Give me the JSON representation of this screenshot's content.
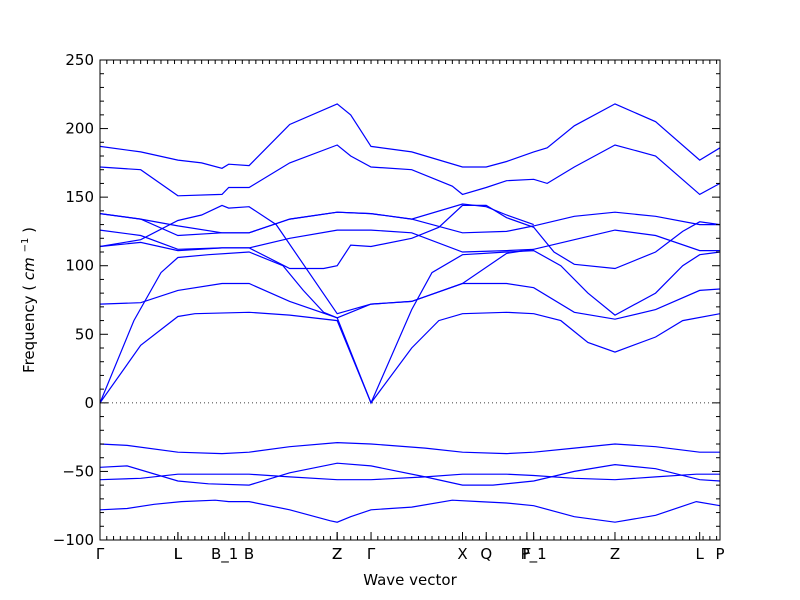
{
  "chart_data": {
    "type": "line",
    "title": "",
    "xlabel": "Wave vector",
    "ylabel": "Frequency",
    "ylabel_unit_base": "cm",
    "ylabel_unit_exp": "−1",
    "ylim": [
      -100,
      250
    ],
    "yticks": [
      "250",
      "200",
      "150",
      "100",
      "50",
      "0",
      "−50",
      "−100"
    ],
    "ytick_values": [
      250,
      200,
      150,
      100,
      50,
      0,
      -50,
      -100
    ],
    "xlim": [
      0,
      4.575
    ],
    "high_symmetry_points": [
      {
        "label": "Γ",
        "x": 0.0
      },
      {
        "label": "L",
        "x": 0.575
      },
      {
        "label": "L",
        "x": 0.575
      },
      {
        "label": "B_1",
        "x": 0.92
      },
      {
        "label": "B",
        "x": 1.1
      },
      {
        "label": "Z",
        "x": 1.75
      },
      {
        "label": "Z",
        "x": 1.75
      },
      {
        "label": "Γ",
        "x": 2.0
      },
      {
        "label": "X",
        "x": 2.675
      },
      {
        "label": "Q",
        "x": 2.85
      },
      {
        "label": "F",
        "x": 3.15
      },
      {
        "label": "P_1",
        "x": 3.2
      },
      {
        "label": "Z",
        "x": 3.8
      },
      {
        "label": "L",
        "x": 4.425
      },
      {
        "label": "P",
        "x": 4.575
      }
    ],
    "grid": false,
    "series": [
      {
        "values": [
          [
            0,
            -78
          ],
          [
            0.2,
            -77
          ],
          [
            0.4,
            -74
          ],
          [
            0.6,
            -72
          ],
          [
            0.85,
            -71
          ],
          [
            0.95,
            -72
          ],
          [
            1.1,
            -72
          ],
          [
            1.4,
            -78
          ],
          [
            1.7,
            -86
          ],
          [
            1.75,
            -87
          ],
          [
            1.85,
            -83
          ],
          [
            2.0,
            -78
          ],
          [
            2.3,
            -76
          ],
          [
            2.6,
            -71
          ],
          [
            2.8,
            -72
          ],
          [
            3.0,
            -73
          ],
          [
            3.2,
            -75
          ],
          [
            3.5,
            -83
          ],
          [
            3.8,
            -87
          ],
          [
            4.1,
            -82
          ],
          [
            4.4,
            -72
          ],
          [
            4.575,
            -75
          ]
        ]
      },
      {
        "values": [
          [
            0,
            -56
          ],
          [
            0.3,
            -55
          ],
          [
            0.575,
            -52
          ],
          [
            0.85,
            -52
          ],
          [
            1.1,
            -52
          ],
          [
            1.4,
            -54
          ],
          [
            1.75,
            -56
          ],
          [
            2.0,
            -56
          ],
          [
            2.4,
            -54
          ],
          [
            2.675,
            -52
          ],
          [
            3.0,
            -52
          ],
          [
            3.2,
            -53
          ],
          [
            3.5,
            -55
          ],
          [
            3.8,
            -56
          ],
          [
            4.1,
            -54
          ],
          [
            4.4,
            -52
          ],
          [
            4.575,
            -52
          ]
        ]
      },
      {
        "values": [
          [
            0,
            -47
          ],
          [
            0.2,
            -46
          ],
          [
            0.575,
            -57
          ],
          [
            0.8,
            -59
          ],
          [
            1.1,
            -60
          ],
          [
            1.4,
            -51
          ],
          [
            1.75,
            -44
          ],
          [
            2.0,
            -46
          ],
          [
            2.4,
            -54
          ],
          [
            2.675,
            -60
          ],
          [
            2.9,
            -60
          ],
          [
            3.2,
            -57
          ],
          [
            3.5,
            -50
          ],
          [
            3.8,
            -45
          ],
          [
            4.1,
            -48
          ],
          [
            4.425,
            -56
          ],
          [
            4.575,
            -57
          ]
        ]
      },
      {
        "values": [
          [
            0,
            -30
          ],
          [
            0.2,
            -31
          ],
          [
            0.575,
            -36
          ],
          [
            0.9,
            -37
          ],
          [
            1.1,
            -36
          ],
          [
            1.4,
            -32
          ],
          [
            1.75,
            -29
          ],
          [
            2.0,
            -30
          ],
          [
            2.4,
            -33
          ],
          [
            2.675,
            -36
          ],
          [
            3.0,
            -37
          ],
          [
            3.2,
            -36
          ],
          [
            3.5,
            -33
          ],
          [
            3.8,
            -30
          ],
          [
            4.1,
            -32
          ],
          [
            4.425,
            -36
          ],
          [
            4.575,
            -36
          ]
        ]
      },
      {
        "values": [
          [
            0,
            0
          ],
          [
            0.3,
            42
          ],
          [
            0.575,
            63
          ],
          [
            0.7,
            65
          ],
          [
            1.1,
            66
          ],
          [
            1.4,
            64
          ],
          [
            1.75,
            60
          ],
          [
            2.0,
            0
          ],
          [
            2.3,
            40
          ],
          [
            2.5,
            60
          ],
          [
            2.675,
            65
          ],
          [
            3.0,
            66
          ],
          [
            3.2,
            65
          ],
          [
            3.4,
            60
          ],
          [
            3.6,
            44
          ],
          [
            3.8,
            37
          ],
          [
            4.1,
            48
          ],
          [
            4.3,
            60
          ],
          [
            4.575,
            65
          ]
        ]
      },
      {
        "values": [
          [
            0,
            0
          ],
          [
            0.25,
            60
          ],
          [
            0.45,
            95
          ],
          [
            0.575,
            106
          ],
          [
            0.8,
            108
          ],
          [
            1.1,
            110
          ],
          [
            1.35,
            100
          ],
          [
            1.5,
            82
          ],
          [
            1.65,
            66
          ],
          [
            1.75,
            62
          ],
          [
            2.0,
            0
          ],
          [
            2.3,
            68
          ],
          [
            2.45,
            95
          ],
          [
            2.675,
            108
          ],
          [
            3.0,
            110
          ],
          [
            3.2,
            111
          ],
          [
            3.4,
            100
          ],
          [
            3.6,
            80
          ],
          [
            3.8,
            64
          ],
          [
            4.1,
            80
          ],
          [
            4.3,
            100
          ],
          [
            4.425,
            108
          ],
          [
            4.575,
            110
          ]
        ]
      },
      {
        "values": [
          [
            0,
            72
          ],
          [
            0.3,
            73
          ],
          [
            0.575,
            82
          ],
          [
            0.9,
            87
          ],
          [
            1.1,
            87
          ],
          [
            1.4,
            74
          ],
          [
            1.75,
            62
          ],
          [
            2.0,
            72
          ],
          [
            2.3,
            74
          ],
          [
            2.675,
            87
          ],
          [
            3.0,
            87
          ],
          [
            3.2,
            84
          ],
          [
            3.5,
            66
          ],
          [
            3.8,
            61
          ],
          [
            4.1,
            68
          ],
          [
            4.425,
            82
          ],
          [
            4.575,
            83
          ]
        ]
      },
      {
        "values": [
          [
            0,
            114
          ],
          [
            0.3,
            117
          ],
          [
            0.575,
            111
          ],
          [
            0.9,
            113
          ],
          [
            1.1,
            113
          ],
          [
            1.4,
            120
          ],
          [
            1.75,
            126
          ],
          [
            2.0,
            126
          ],
          [
            2.3,
            124
          ],
          [
            2.675,
            110
          ],
          [
            3.0,
            111
          ],
          [
            3.2,
            112
          ],
          [
            3.5,
            119
          ],
          [
            3.8,
            126
          ],
          [
            4.1,
            122
          ],
          [
            4.425,
            111
          ],
          [
            4.575,
            111
          ]
        ]
      },
      {
        "values": [
          [
            0,
            126
          ],
          [
            0.3,
            122
          ],
          [
            0.575,
            112
          ],
          [
            0.9,
            113
          ],
          [
            1.1,
            113
          ],
          [
            1.4,
            98
          ],
          [
            1.65,
            98
          ],
          [
            1.75,
            100
          ],
          [
            1.85,
            115
          ],
          [
            2.0,
            114
          ],
          [
            2.3,
            120
          ],
          [
            2.5,
            128
          ],
          [
            2.675,
            144
          ],
          [
            2.85,
            144
          ],
          [
            3.0,
            135
          ],
          [
            3.2,
            128
          ],
          [
            3.35,
            110
          ],
          [
            3.5,
            101
          ],
          [
            3.8,
            98
          ],
          [
            4.1,
            110
          ],
          [
            4.3,
            125
          ],
          [
            4.425,
            132
          ],
          [
            4.575,
            130
          ]
        ]
      },
      {
        "values": [
          [
            0,
            138
          ],
          [
            0.3,
            134
          ],
          [
            0.575,
            129
          ],
          [
            0.9,
            124
          ],
          [
            1.1,
            124
          ],
          [
            1.4,
            134
          ],
          [
            1.75,
            139
          ],
          [
            2.0,
            138
          ],
          [
            2.3,
            134
          ],
          [
            2.675,
            124
          ],
          [
            3.0,
            125
          ],
          [
            3.2,
            129
          ],
          [
            3.5,
            136
          ],
          [
            3.8,
            139
          ],
          [
            4.1,
            136
          ],
          [
            4.425,
            130
          ],
          [
            4.575,
            130
          ]
        ]
      },
      {
        "values": [
          [
            0,
            114
          ],
          [
            0.3,
            119
          ],
          [
            0.575,
            133
          ],
          [
            0.75,
            137
          ],
          [
            0.9,
            144
          ],
          [
            0.95,
            142
          ],
          [
            1.1,
            143
          ],
          [
            1.3,
            130
          ],
          [
            1.75,
            65
          ],
          [
            2.0,
            72
          ],
          [
            2.3,
            74
          ],
          [
            2.675,
            87
          ],
          [
            3.0,
            109
          ],
          [
            3.2,
            112
          ]
        ]
      },
      {
        "values": [
          [
            0,
            138
          ],
          [
            0.3,
            134
          ],
          [
            0.575,
            122
          ],
          [
            0.9,
            124
          ],
          [
            1.1,
            124
          ],
          [
            1.4,
            134
          ],
          [
            1.75,
            139
          ],
          [
            2.0,
            138
          ],
          [
            2.3,
            134
          ],
          [
            2.675,
            145
          ],
          [
            2.85,
            143
          ],
          [
            3.0,
            137
          ],
          [
            3.2,
            130
          ]
        ]
      },
      {
        "values": [
          [
            0,
            172
          ],
          [
            0.3,
            170
          ],
          [
            0.575,
            151
          ],
          [
            0.9,
            152
          ],
          [
            0.95,
            157
          ],
          [
            1.1,
            157
          ],
          [
            1.4,
            175
          ],
          [
            1.75,
            188
          ],
          [
            1.85,
            180
          ],
          [
            2.0,
            172
          ],
          [
            2.3,
            170
          ],
          [
            2.6,
            158
          ],
          [
            2.675,
            152
          ],
          [
            2.85,
            157
          ],
          [
            3.0,
            162
          ],
          [
            3.2,
            163
          ],
          [
            3.3,
            160
          ],
          [
            3.5,
            172
          ],
          [
            3.8,
            188
          ],
          [
            4.1,
            180
          ],
          [
            4.425,
            152
          ],
          [
            4.575,
            160
          ]
        ]
      },
      {
        "values": [
          [
            0,
            187
          ],
          [
            0.3,
            183
          ],
          [
            0.575,
            177
          ],
          [
            0.75,
            175
          ],
          [
            0.9,
            171
          ],
          [
            0.95,
            174
          ],
          [
            1.1,
            173
          ],
          [
            1.4,
            203
          ],
          [
            1.75,
            218
          ],
          [
            1.85,
            210
          ],
          [
            2.0,
            187
          ],
          [
            2.3,
            183
          ],
          [
            2.675,
            172
          ],
          [
            2.85,
            172
          ],
          [
            3.0,
            176
          ],
          [
            3.2,
            183
          ],
          [
            3.3,
            186
          ],
          [
            3.5,
            202
          ],
          [
            3.8,
            218
          ],
          [
            4.1,
            205
          ],
          [
            4.425,
            177
          ],
          [
            4.575,
            186
          ]
        ]
      }
    ]
  }
}
